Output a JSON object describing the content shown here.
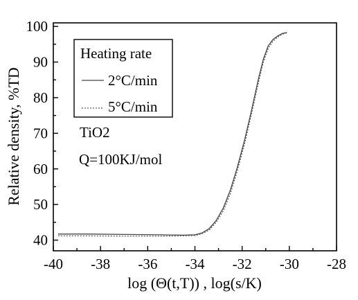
{
  "chart_data": {
    "type": "line",
    "title": "",
    "xlabel": "log (Θ(t,T)) , log(s/K)",
    "ylabel": "Relative density, %TD",
    "xlim": [
      -40,
      -28
    ],
    "ylim": [
      37,
      101
    ],
    "x_ticks": [
      -40,
      -38,
      -36,
      -34,
      -32,
      -30,
      -28
    ],
    "x_tick_labels": [
      "-40",
      "-38",
      "-36",
      "-34",
      "-32",
      "-30",
      "-28"
    ],
    "y_ticks": [
      40,
      50,
      60,
      70,
      80,
      90,
      100
    ],
    "y_tick_labels": [
      "40",
      "50",
      "60",
      "70",
      "80",
      "90",
      "100"
    ],
    "grid": false,
    "legend": {
      "title": "Heating rate",
      "placement": "top-left",
      "entries": [
        "2°C/min",
        "5°C/min"
      ]
    },
    "annotations": {
      "material": "TiO2",
      "activation_energy": "Q=100KJ/mol"
    },
    "series": [
      {
        "name": "2°C/min",
        "color": "#444444",
        "dash": "solid",
        "x": [
          -39.8,
          -38.5,
          -37.0,
          -35.5,
          -34.5,
          -34.0,
          -33.7,
          -33.4,
          -33.1,
          -32.8,
          -32.5,
          -32.2,
          -31.9,
          -31.6,
          -31.3,
          -31.1,
          -30.9,
          -30.7,
          -30.5,
          -30.3,
          -30.1
        ],
        "y": [
          41.7,
          41.7,
          41.6,
          41.5,
          41.4,
          41.5,
          42.0,
          43.2,
          45.5,
          49.0,
          54.0,
          60.5,
          68.0,
          76.5,
          85.5,
          90.8,
          94.5,
          96.3,
          97.3,
          98.0,
          98.3
        ]
      },
      {
        "name": "5°C/min",
        "color": "#555555",
        "dash": "2,2",
        "x": [
          -39.8,
          -38.5,
          -37.0,
          -35.5,
          -34.5,
          -34.0,
          -33.7,
          -33.4,
          -33.1,
          -32.8,
          -32.5,
          -32.2,
          -31.9,
          -31.6,
          -31.3,
          -31.1,
          -30.9,
          -30.7,
          -30.5,
          -30.3,
          -30.1
        ],
        "y": [
          41.2,
          41.2,
          41.1,
          41.1,
          41.2,
          41.3,
          41.8,
          42.8,
          45.0,
          48.2,
          53.0,
          59.5,
          67.0,
          75.5,
          84.5,
          90.0,
          93.8,
          95.8,
          97.0,
          97.8,
          98.2
        ]
      }
    ]
  }
}
